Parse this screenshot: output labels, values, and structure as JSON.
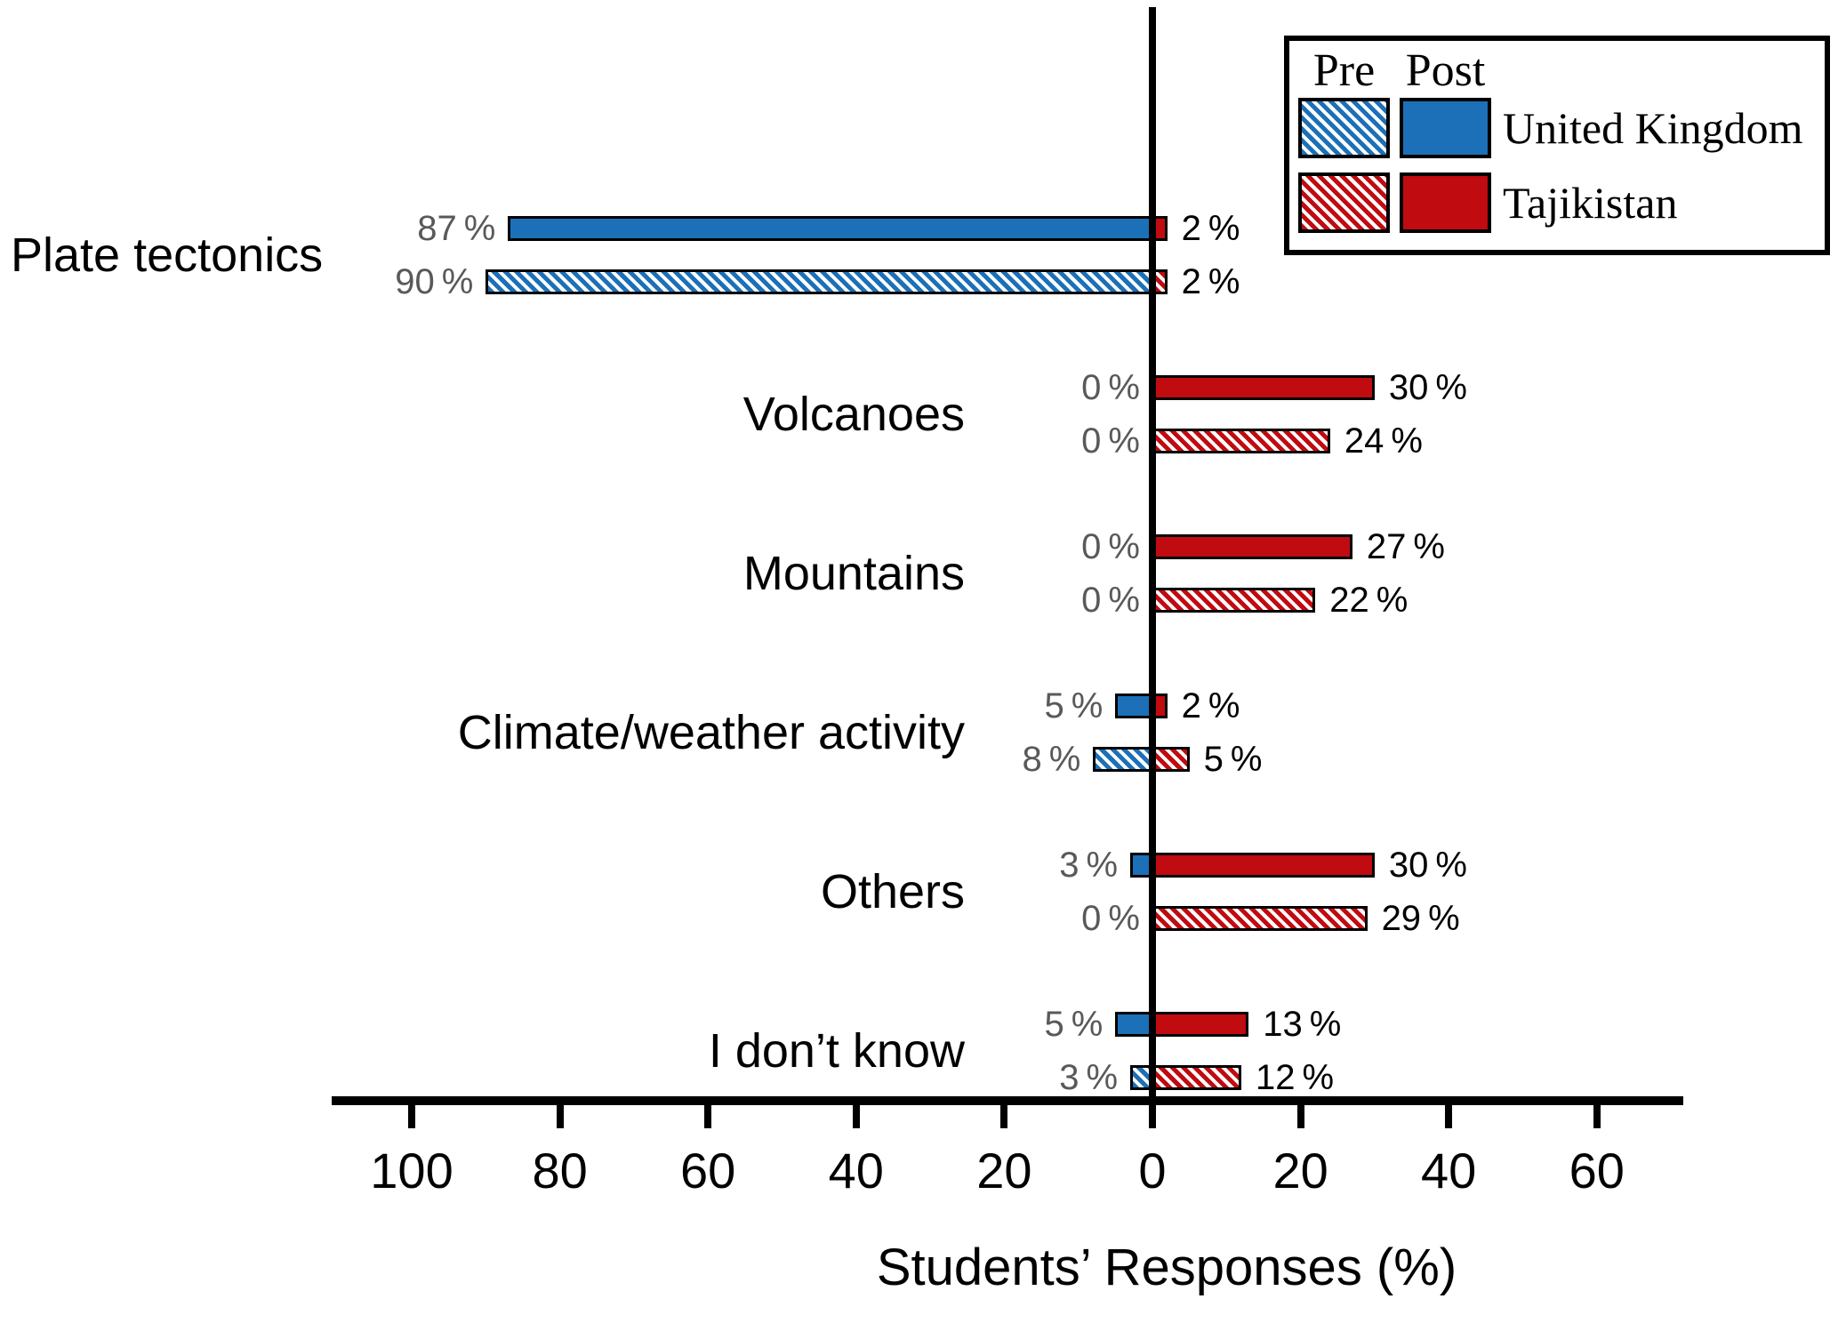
{
  "chart_data": {
    "type": "bar",
    "orientation": "horizontal-diverging",
    "xlabel": "Students’ Responses (%)",
    "value_suffix": "%",
    "x_ticks_left": [
      100,
      80,
      60,
      40,
      20
    ],
    "x_tick_zero": 0,
    "x_ticks_right": [
      20,
      40,
      60
    ],
    "xlim_left": 100,
    "xlim_right": 60,
    "grid": false,
    "categories": [
      "Plate tectonics",
      "Volcanoes",
      "Mountains",
      "Climate/weather activity",
      "Others",
      "I don’t know"
    ],
    "series": [
      {
        "name": "United Kingdom Post",
        "side": "left",
        "pattern": "solid",
        "color": "#1c70b8",
        "values": [
          87,
          0,
          0,
          5,
          3,
          5
        ]
      },
      {
        "name": "United Kingdom Pre",
        "side": "left",
        "pattern": "hatched",
        "color": "#1c70b8",
        "values": [
          90,
          0,
          0,
          8,
          0,
          3
        ]
      },
      {
        "name": "Tajikistan Post",
        "side": "right",
        "pattern": "solid",
        "color": "#c00b10",
        "values": [
          2,
          30,
          27,
          2,
          30,
          13
        ]
      },
      {
        "name": "Tajikistan Pre",
        "side": "right",
        "pattern": "hatched",
        "color": "#c00b10",
        "values": [
          2,
          24,
          22,
          5,
          29,
          12
        ]
      }
    ],
    "left_value_label_color": "#595959",
    "right_value_label_color": "#000000"
  },
  "legend": {
    "pre_header": "Pre",
    "post_header": "Post",
    "entries": [
      {
        "label": "United Kingdom",
        "color": "#1c70b8"
      },
      {
        "label": "Tajikistan",
        "color": "#c00b10"
      }
    ]
  }
}
